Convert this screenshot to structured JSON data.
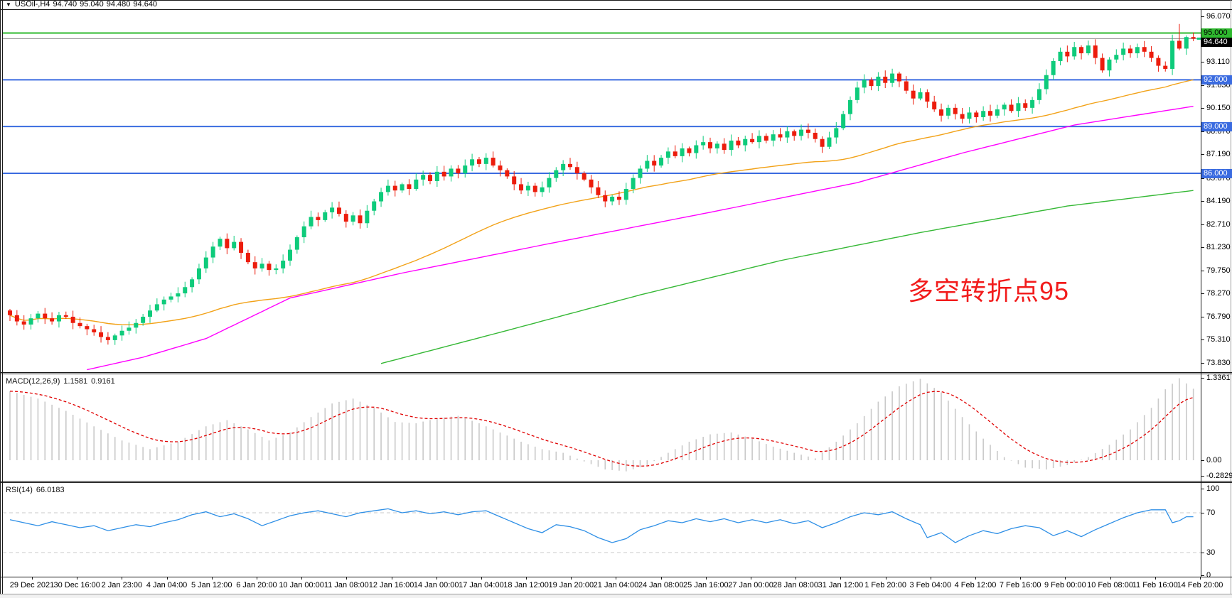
{
  "title": {
    "symbol": "USOil-,H4",
    "open": "94.740",
    "high": "95.040",
    "low": "94.480",
    "close": "94.640"
  },
  "macd_header": {
    "label": "MACD(12,26,9)",
    "value_main": "1.1581",
    "value_signal": "0.9161"
  },
  "rsi_header": {
    "label": "RSI(14)",
    "value": "66.0183"
  },
  "colors": {
    "bull": "#0ecb7b",
    "bear": "#ec1c0c",
    "ma_fast": "#f2a218",
    "ma_mid": "#ff00ff",
    "ma_slow": "#35b835",
    "level_blue": "#3a6be0",
    "level_green": "#2eb82e",
    "current_line": "#8f8f8f",
    "current_badge_bg": "#000000",
    "macd_hist": "#c9c9c9",
    "macd_signal": "#e00000",
    "rsi_line": "#2e8fe6",
    "rsi_level": "#c8c8c8",
    "annotation": "#f21c1c"
  },
  "chart_data": {
    "type": "candlestick",
    "symbol": "USOil-",
    "timeframe": "H4",
    "bars": 170,
    "current_ohlc": {
      "open": 94.74,
      "high": 95.04,
      "low": 94.48,
      "close": 94.64
    },
    "first_open": 77.2,
    "closes": [
      76.9,
      76.5,
      76.3,
      76.7,
      77.0,
      76.7,
      76.5,
      76.9,
      76.8,
      76.4,
      76.2,
      76.0,
      75.8,
      75.5,
      75.3,
      75.6,
      75.9,
      76.1,
      76.4,
      76.8,
      77.2,
      77.6,
      77.9,
      78.1,
      78.3,
      78.7,
      79.2,
      79.9,
      80.6,
      81.3,
      81.8,
      81.2,
      81.6,
      80.9,
      80.3,
      79.9,
      80.2,
      79.8,
      79.9,
      80.4,
      81.1,
      81.9,
      82.6,
      83.2,
      83.0,
      83.5,
      83.8,
      83.4,
      82.9,
      83.3,
      82.8,
      83.6,
      84.2,
      84.8,
      85.2,
      84.9,
      85.3,
      85.0,
      85.6,
      85.9,
      85.5,
      86.1,
      85.8,
      86.3,
      86.0,
      86.5,
      86.9,
      86.6,
      87.0,
      86.5,
      86.2,
      85.8,
      85.3,
      84.9,
      85.2,
      84.8,
      85.1,
      85.7,
      86.2,
      86.6,
      86.4,
      86.0,
      85.6,
      85.1,
      84.6,
      84.2,
      84.5,
      84.3,
      85.0,
      85.7,
      86.3,
      86.8,
      86.5,
      87.0,
      87.4,
      87.1,
      87.6,
      87.3,
      87.8,
      88.0,
      87.6,
      87.9,
      87.5,
      88.1,
      87.8,
      88.2,
      88.0,
      88.4,
      88.1,
      88.5,
      88.3,
      88.7,
      88.4,
      88.8,
      88.6,
      88.2,
      87.7,
      88.3,
      88.9,
      89.8,
      90.7,
      91.5,
      92.0,
      91.6,
      92.2,
      91.8,
      92.4,
      91.9,
      91.3,
      90.8,
      91.2,
      90.6,
      90.1,
      89.7,
      90.2,
      89.8,
      89.5,
      89.9,
      89.6,
      90.0,
      89.7,
      90.1,
      90.4,
      90.0,
      90.5,
      90.2,
      90.7,
      91.4,
      92.3,
      93.2,
      93.8,
      93.5,
      94.1,
      93.7,
      94.2,
      93.4,
      92.6,
      93.3,
      93.6,
      94.0,
      93.7,
      94.1,
      93.8,
      93.4,
      92.9,
      92.7,
      94.5,
      94.0,
      94.74,
      94.64
    ],
    "wick_spikes": {
      "167": 95.58
    },
    "price_axis_ticks": [
      "96.070",
      "93.110",
      "91.630",
      "90.150",
      "88.670",
      "87.190",
      "85.670",
      "84.190",
      "82.710",
      "81.230",
      "79.750",
      "78.270",
      "76.790",
      "75.310",
      "73.830"
    ],
    "horizontal_levels": [
      {
        "label": "95.000",
        "price": 95.0,
        "color": "#2eb82e",
        "text_color": "#000000"
      },
      {
        "label": "92.000",
        "price": 92.0,
        "color": "#3a6be0",
        "text_color": "#ffffff"
      },
      {
        "label": "89.000",
        "price": 89.0,
        "color": "#3a6be0",
        "text_color": "#ffffff"
      },
      {
        "label": "86.000",
        "price": 86.0,
        "color": "#3a6be0",
        "text_color": "#ffffff"
      }
    ],
    "current_price": {
      "label": "94.640",
      "price": 94.64
    },
    "moving_averages": {
      "fast": {
        "type": "sma",
        "period": 50
      },
      "mid": {
        "anchors": [
          [
            11,
            73.4
          ],
          [
            19,
            74.2
          ],
          [
            28,
            75.4
          ],
          [
            40,
            78.0
          ],
          [
            56,
            79.6
          ],
          [
            76,
            81.4
          ],
          [
            100,
            83.5
          ],
          [
            121,
            85.4
          ],
          [
            136,
            87.3
          ],
          [
            152,
            89.1
          ],
          [
            169,
            90.3
          ]
        ]
      },
      "slow": {
        "anchors": [
          [
            53,
            73.8
          ],
          [
            70,
            75.8
          ],
          [
            90,
            78.2
          ],
          [
            110,
            80.4
          ],
          [
            130,
            82.2
          ],
          [
            151,
            83.9
          ],
          [
            169,
            84.9
          ]
        ]
      }
    },
    "macd": {
      "params": "12,26,9",
      "value_main": 1.1581,
      "value_signal": 0.9161,
      "axis_ticks": [
        "1.3361",
        "0.00",
        "-0.2829"
      ],
      "hist_anchors": [
        [
          0,
          1.12
        ],
        [
          4,
          1.0
        ],
        [
          8,
          0.8
        ],
        [
          12,
          0.55
        ],
        [
          16,
          0.32
        ],
        [
          20,
          0.18
        ],
        [
          24,
          0.3
        ],
        [
          28,
          0.55
        ],
        [
          31,
          0.65
        ],
        [
          34,
          0.5
        ],
        [
          37,
          0.32
        ],
        [
          40,
          0.45
        ],
        [
          43,
          0.7
        ],
        [
          46,
          0.92
        ],
        [
          49,
          1.0
        ],
        [
          52,
          0.85
        ],
        [
          55,
          0.62
        ],
        [
          58,
          0.6
        ],
        [
          61,
          0.68
        ],
        [
          64,
          0.72
        ],
        [
          67,
          0.6
        ],
        [
          70,
          0.45
        ],
        [
          73,
          0.3
        ],
        [
          76,
          0.18
        ],
        [
          79,
          0.12
        ],
        [
          82,
          -0.02
        ],
        [
          85,
          -0.15
        ],
        [
          88,
          -0.18
        ],
        [
          91,
          -0.08
        ],
        [
          94,
          0.12
        ],
        [
          97,
          0.3
        ],
        [
          100,
          0.42
        ],
        [
          103,
          0.45
        ],
        [
          106,
          0.35
        ],
        [
          109,
          0.22
        ],
        [
          112,
          0.12
        ],
        [
          115,
          0.03
        ],
        [
          118,
          0.3
        ],
        [
          121,
          0.6
        ],
        [
          124,
          0.95
        ],
        [
          127,
          1.2
        ],
        [
          130,
          1.32
        ],
        [
          133,
          1.1
        ],
        [
          136,
          0.7
        ],
        [
          139,
          0.35
        ],
        [
          142,
          0.05
        ],
        [
          145,
          -0.12
        ],
        [
          148,
          -0.15
        ],
        [
          151,
          -0.08
        ],
        [
          154,
          0.05
        ],
        [
          157,
          0.25
        ],
        [
          160,
          0.5
        ],
        [
          163,
          0.85
        ],
        [
          165,
          1.15
        ],
        [
          167,
          1.33
        ],
        [
          169,
          1.16
        ]
      ]
    },
    "rsi": {
      "period": 14,
      "value": 66.0183,
      "axis_ticks": [
        "100",
        "70",
        "30",
        "0"
      ],
      "levels": [
        70,
        30
      ],
      "anchors": [
        [
          0,
          63
        ],
        [
          2,
          60
        ],
        [
          4,
          57
        ],
        [
          6,
          61
        ],
        [
          8,
          58
        ],
        [
          10,
          55
        ],
        [
          12,
          57
        ],
        [
          14,
          52
        ],
        [
          16,
          55
        ],
        [
          18,
          58
        ],
        [
          20,
          56
        ],
        [
          22,
          60
        ],
        [
          24,
          63
        ],
        [
          26,
          68
        ],
        [
          28,
          71
        ],
        [
          30,
          66
        ],
        [
          32,
          69
        ],
        [
          34,
          64
        ],
        [
          36,
          57
        ],
        [
          38,
          62
        ],
        [
          40,
          67
        ],
        [
          42,
          70
        ],
        [
          44,
          72
        ],
        [
          46,
          69
        ],
        [
          48,
          66
        ],
        [
          50,
          70
        ],
        [
          52,
          72
        ],
        [
          54,
          74
        ],
        [
          56,
          70
        ],
        [
          58,
          72
        ],
        [
          60,
          69
        ],
        [
          62,
          71
        ],
        [
          64,
          68
        ],
        [
          66,
          71
        ],
        [
          68,
          72
        ],
        [
          70,
          66
        ],
        [
          72,
          60
        ],
        [
          74,
          54
        ],
        [
          76,
          50
        ],
        [
          78,
          58
        ],
        [
          80,
          56
        ],
        [
          82,
          52
        ],
        [
          84,
          45
        ],
        [
          86,
          40
        ],
        [
          88,
          44
        ],
        [
          90,
          53
        ],
        [
          92,
          57
        ],
        [
          94,
          62
        ],
        [
          96,
          60
        ],
        [
          98,
          64
        ],
        [
          100,
          61
        ],
        [
          102,
          64
        ],
        [
          104,
          60
        ],
        [
          106,
          63
        ],
        [
          108,
          60
        ],
        [
          110,
          63
        ],
        [
          112,
          59
        ],
        [
          114,
          62
        ],
        [
          116,
          55
        ],
        [
          118,
          60
        ],
        [
          120,
          66
        ],
        [
          122,
          70
        ],
        [
          124,
          68
        ],
        [
          126,
          71
        ],
        [
          128,
          64
        ],
        [
          130,
          58
        ],
        [
          131,
          45
        ],
        [
          133,
          50
        ],
        [
          135,
          40
        ],
        [
          137,
          47
        ],
        [
          139,
          52
        ],
        [
          141,
          49
        ],
        [
          143,
          54
        ],
        [
          145,
          57
        ],
        [
          147,
          55
        ],
        [
          149,
          47
        ],
        [
          151,
          52
        ],
        [
          153,
          46
        ],
        [
          155,
          53
        ],
        [
          157,
          59
        ],
        [
          159,
          65
        ],
        [
          161,
          70
        ],
        [
          163,
          73
        ],
        [
          165,
          73
        ],
        [
          166,
          60
        ],
        [
          167,
          62
        ],
        [
          168,
          66
        ],
        [
          169,
          66
        ]
      ]
    },
    "time_labels": [
      "29 Dec 2021",
      "30 Dec 16:00",
      "2 Jan 23:00",
      "4 Jan 04:00",
      "5 Jan 12:00",
      "6 Jan 20:00",
      "10 Jan 00:00",
      "11 Jan 08:00",
      "12 Jan 16:00",
      "14 Jan 00:00",
      "17 Jan 04:00",
      "18 Jan 12:00",
      "19 Jan 20:00",
      "21 Jan 04:00",
      "24 Jan 08:00",
      "25 Jan 16:00",
      "27 Jan 00:00",
      "28 Jan 08:00",
      "31 Jan 12:00",
      "1 Feb 20:00",
      "3 Feb 04:00",
      "4 Feb 12:00",
      "7 Feb 16:00",
      "9 Feb 00:00",
      "10 Feb 08:00",
      "11 Feb 16:00",
      "14 Feb 20:00"
    ],
    "annotation": {
      "text": "多空转折点95"
    }
  }
}
